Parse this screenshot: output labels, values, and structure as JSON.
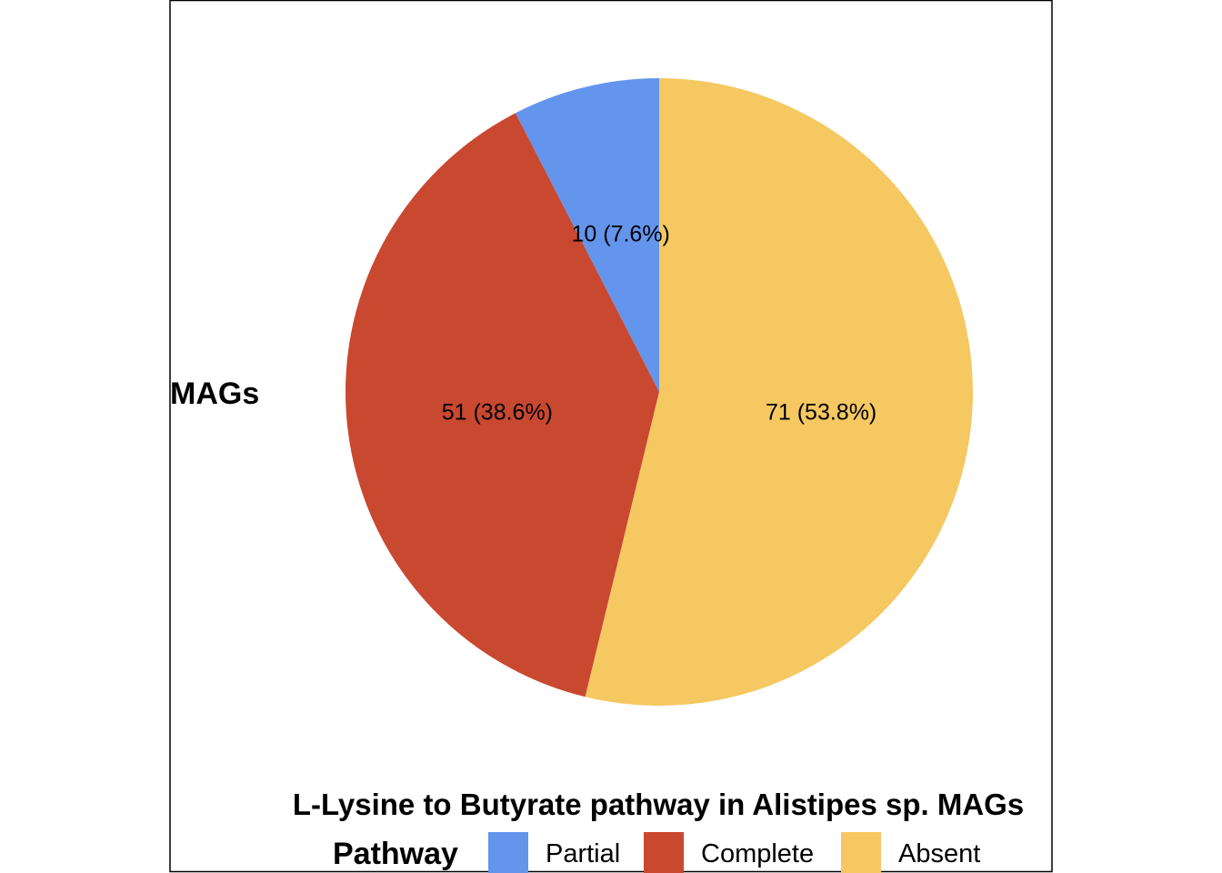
{
  "chart_data": {
    "type": "pie",
    "title": "L-Lysine to Butyrate pathway in Alistipes sp. MAGs",
    "ylabel": "MAGs",
    "legend_title": "Pathway",
    "legend_position": "bottom",
    "slices": [
      {
        "name": "Partial",
        "value": 10,
        "label": "10 (7.6%)",
        "color": "#6495ED"
      },
      {
        "name": "Complete",
        "value": 51,
        "label": "51 (38.6%)",
        "color": "#C94830"
      },
      {
        "name": "Absent",
        "value": 71,
        "label": "71 (53.8%)",
        "color": "#F5C862"
      }
    ]
  }
}
